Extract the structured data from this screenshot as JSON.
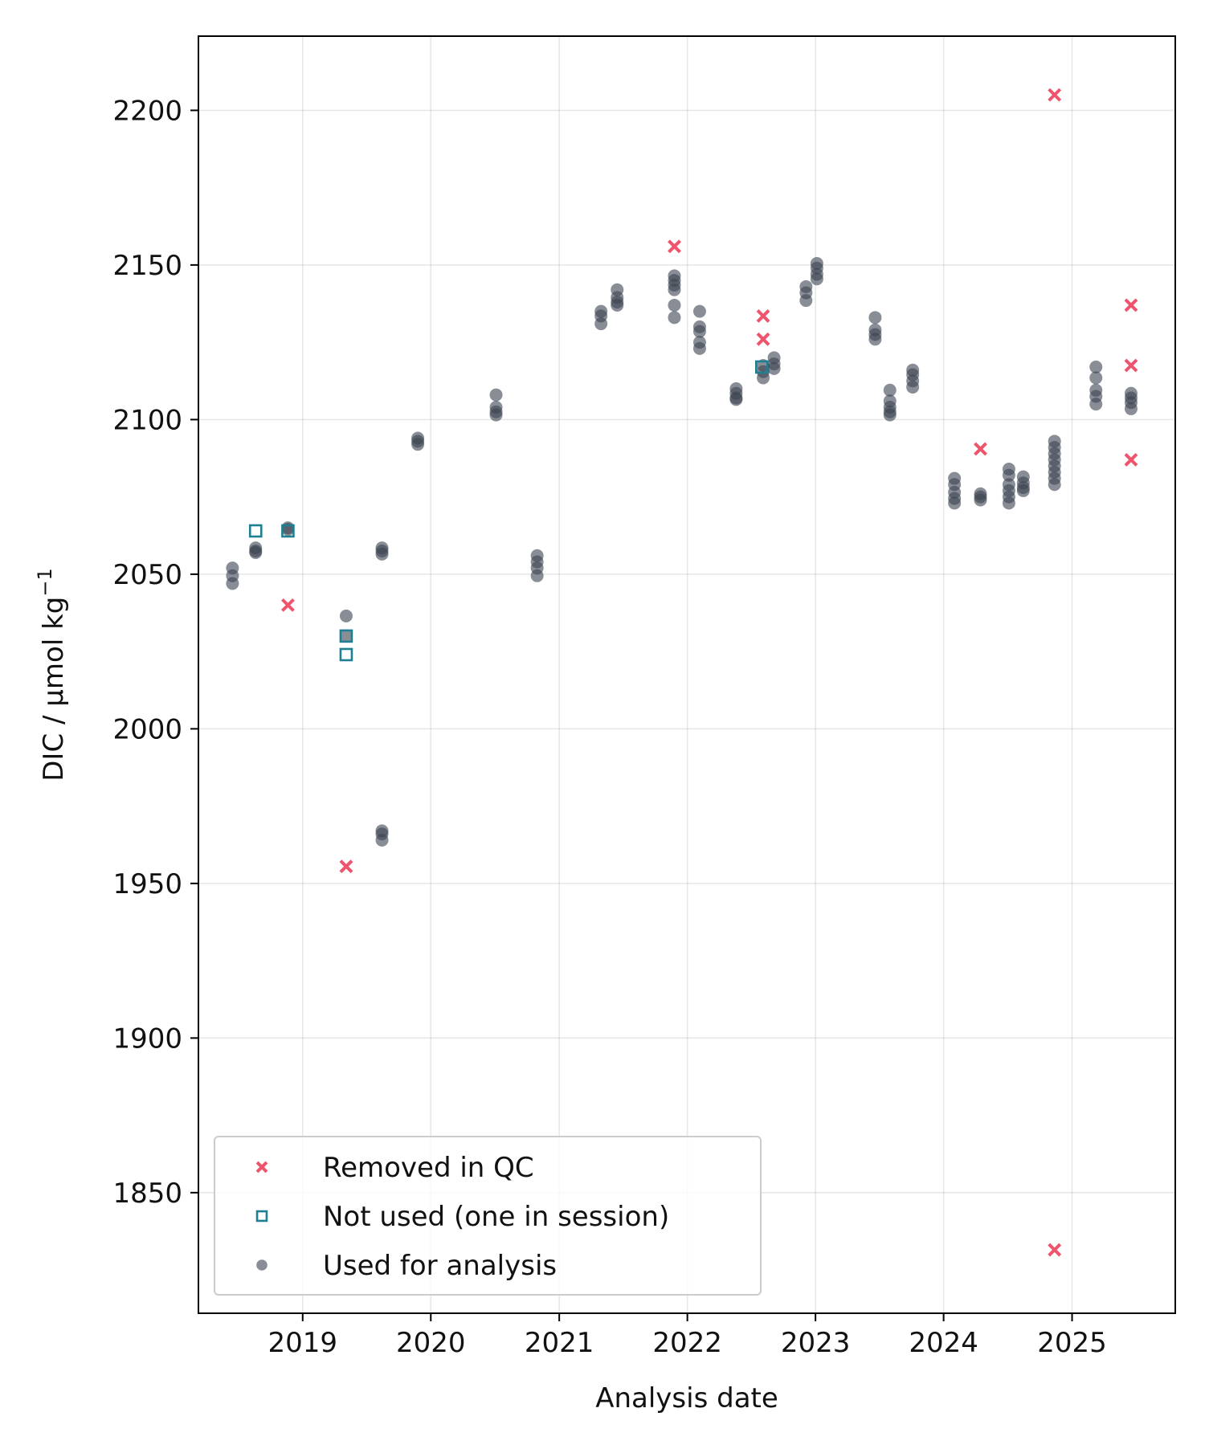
{
  "chart_data": {
    "type": "scatter",
    "title": "",
    "xlabel": "Analysis date",
    "ylabel": "DIC / μmol kg⁻¹",
    "ylabel_main": "DIC / μmol kg",
    "ylabel_exponent": "−1",
    "xlim": [
      "2018-03-10",
      "2025-10-22"
    ],
    "ylim": [
      1811,
      2224
    ],
    "xticks": [
      {
        "date": "2019-01-01",
        "label": "2019"
      },
      {
        "date": "2020-01-01",
        "label": "2020"
      },
      {
        "date": "2021-01-01",
        "label": "2021"
      },
      {
        "date": "2022-01-01",
        "label": "2022"
      },
      {
        "date": "2023-01-01",
        "label": "2023"
      },
      {
        "date": "2024-01-01",
        "label": "2024"
      },
      {
        "date": "2025-01-01",
        "label": "2025"
      }
    ],
    "yticks": [
      1850,
      1900,
      1950,
      2000,
      2050,
      2100,
      2150,
      2200
    ],
    "grid": true,
    "legend_position": "bottom-left",
    "legend": [
      {
        "key": "removed",
        "label": "Removed in QC"
      },
      {
        "key": "not_used",
        "label": "Not used (one in session)"
      },
      {
        "key": "used",
        "label": "Used for analysis"
      }
    ],
    "series": [
      {
        "key": "used",
        "name": "Used for analysis",
        "marker": "circle",
        "color": "#3a4250",
        "points": [
          {
            "x": "2018-06-15",
            "y": 2052
          },
          {
            "x": "2018-06-15",
            "y": 2049.5
          },
          {
            "x": "2018-06-15",
            "y": 2047
          },
          {
            "x": "2018-08-20",
            "y": 2058.5
          },
          {
            "x": "2018-08-20",
            "y": 2057.5
          },
          {
            "x": "2018-08-20",
            "y": 2057
          },
          {
            "x": "2018-11-20",
            "y": 2065
          },
          {
            "x": "2018-11-20",
            "y": 2064.5
          },
          {
            "x": "2019-05-05",
            "y": 2036.5
          },
          {
            "x": "2019-05-05",
            "y": 2030
          },
          {
            "x": "2019-08-15",
            "y": 2058.5
          },
          {
            "x": "2019-08-15",
            "y": 2057.5
          },
          {
            "x": "2019-08-15",
            "y": 2056.5
          },
          {
            "x": "2019-08-15",
            "y": 1967
          },
          {
            "x": "2019-08-15",
            "y": 1966
          },
          {
            "x": "2019-08-15",
            "y": 1964
          },
          {
            "x": "2019-11-25",
            "y": 2094
          },
          {
            "x": "2019-11-25",
            "y": 2093
          },
          {
            "x": "2019-11-25",
            "y": 2092
          },
          {
            "x": "2020-07-05",
            "y": 2108
          },
          {
            "x": "2020-07-05",
            "y": 2104
          },
          {
            "x": "2020-07-05",
            "y": 2102.5
          },
          {
            "x": "2020-07-05",
            "y": 2101.5
          },
          {
            "x": "2020-10-30",
            "y": 2056
          },
          {
            "x": "2020-10-30",
            "y": 2054
          },
          {
            "x": "2020-10-30",
            "y": 2052
          },
          {
            "x": "2020-10-30",
            "y": 2049.5
          },
          {
            "x": "2021-04-30",
            "y": 2135
          },
          {
            "x": "2021-04-30",
            "y": 2133.5
          },
          {
            "x": "2021-04-30",
            "y": 2131
          },
          {
            "x": "2021-06-15",
            "y": 2142
          },
          {
            "x": "2021-06-15",
            "y": 2139.5
          },
          {
            "x": "2021-06-15",
            "y": 2138
          },
          {
            "x": "2021-06-15",
            "y": 2137
          },
          {
            "x": "2021-11-25",
            "y": 2146.5
          },
          {
            "x": "2021-11-25",
            "y": 2145
          },
          {
            "x": "2021-11-25",
            "y": 2143.5
          },
          {
            "x": "2021-11-25",
            "y": 2142
          },
          {
            "x": "2021-11-25",
            "y": 2137
          },
          {
            "x": "2021-11-25",
            "y": 2133
          },
          {
            "x": "2022-02-05",
            "y": 2135
          },
          {
            "x": "2022-02-05",
            "y": 2130
          },
          {
            "x": "2022-02-05",
            "y": 2128.5
          },
          {
            "x": "2022-02-05",
            "y": 2125
          },
          {
            "x": "2022-02-05",
            "y": 2123
          },
          {
            "x": "2022-05-20",
            "y": 2110
          },
          {
            "x": "2022-05-20",
            "y": 2108.5
          },
          {
            "x": "2022-05-20",
            "y": 2107
          },
          {
            "x": "2022-05-20",
            "y": 2106.5
          },
          {
            "x": "2022-08-05",
            "y": 2117.5
          },
          {
            "x": "2022-08-05",
            "y": 2115.5
          },
          {
            "x": "2022-08-05",
            "y": 2113.5
          },
          {
            "x": "2022-09-05",
            "y": 2120
          },
          {
            "x": "2022-09-05",
            "y": 2118
          },
          {
            "x": "2022-09-05",
            "y": 2116.5
          },
          {
            "x": "2022-12-05",
            "y": 2143
          },
          {
            "x": "2022-12-05",
            "y": 2141
          },
          {
            "x": "2022-12-05",
            "y": 2138.5
          },
          {
            "x": "2023-01-05",
            "y": 2150.5
          },
          {
            "x": "2023-01-05",
            "y": 2149
          },
          {
            "x": "2023-01-05",
            "y": 2147
          },
          {
            "x": "2023-01-05",
            "y": 2145.5
          },
          {
            "x": "2023-06-20",
            "y": 2133
          },
          {
            "x": "2023-06-20",
            "y": 2129
          },
          {
            "x": "2023-06-20",
            "y": 2127.5
          },
          {
            "x": "2023-06-20",
            "y": 2126
          },
          {
            "x": "2023-08-01",
            "y": 2109.5
          },
          {
            "x": "2023-08-01",
            "y": 2106
          },
          {
            "x": "2023-08-01",
            "y": 2104
          },
          {
            "x": "2023-08-01",
            "y": 2102.5
          },
          {
            "x": "2023-08-01",
            "y": 2101.5
          },
          {
            "x": "2023-10-05",
            "y": 2116
          },
          {
            "x": "2023-10-05",
            "y": 2114.5
          },
          {
            "x": "2023-10-05",
            "y": 2112.5
          },
          {
            "x": "2023-10-05",
            "y": 2110.5
          },
          {
            "x": "2024-02-01",
            "y": 2081
          },
          {
            "x": "2024-02-01",
            "y": 2079
          },
          {
            "x": "2024-02-01",
            "y": 2076.5
          },
          {
            "x": "2024-02-01",
            "y": 2074.5
          },
          {
            "x": "2024-02-01",
            "y": 2073
          },
          {
            "x": "2024-04-15",
            "y": 2076
          },
          {
            "x": "2024-04-15",
            "y": 2075
          },
          {
            "x": "2024-04-15",
            "y": 2074
          },
          {
            "x": "2024-07-05",
            "y": 2084
          },
          {
            "x": "2024-07-05",
            "y": 2082
          },
          {
            "x": "2024-07-05",
            "y": 2079
          },
          {
            "x": "2024-07-05",
            "y": 2077
          },
          {
            "x": "2024-07-05",
            "y": 2075
          },
          {
            "x": "2024-07-05",
            "y": 2073
          },
          {
            "x": "2024-08-15",
            "y": 2081.5
          },
          {
            "x": "2024-08-15",
            "y": 2079.5
          },
          {
            "x": "2024-08-15",
            "y": 2078
          },
          {
            "x": "2024-08-15",
            "y": 2077
          },
          {
            "x": "2024-11-12",
            "y": 2093
          },
          {
            "x": "2024-11-12",
            "y": 2091
          },
          {
            "x": "2024-11-12",
            "y": 2089
          },
          {
            "x": "2024-11-12",
            "y": 2087
          },
          {
            "x": "2024-11-12",
            "y": 2085
          },
          {
            "x": "2024-11-12",
            "y": 2083
          },
          {
            "x": "2024-11-12",
            "y": 2081
          },
          {
            "x": "2024-11-12",
            "y": 2079
          },
          {
            "x": "2025-03-10",
            "y": 2117
          },
          {
            "x": "2025-03-10",
            "y": 2113.5
          },
          {
            "x": "2025-03-10",
            "y": 2109.5
          },
          {
            "x": "2025-03-10",
            "y": 2107.5
          },
          {
            "x": "2025-03-10",
            "y": 2105
          },
          {
            "x": "2025-06-18",
            "y": 2108.5
          },
          {
            "x": "2025-06-18",
            "y": 2107
          },
          {
            "x": "2025-06-18",
            "y": 2105.5
          },
          {
            "x": "2025-06-18",
            "y": 2103.5
          }
        ]
      },
      {
        "key": "not_used",
        "name": "Not used (one in session)",
        "marker": "square",
        "color": "#1e7f93",
        "points": [
          {
            "x": "2018-08-20",
            "y": 2064
          },
          {
            "x": "2018-11-20",
            "y": 2064
          },
          {
            "x": "2019-05-05",
            "y": 2030
          },
          {
            "x": "2019-05-05",
            "y": 2024
          },
          {
            "x": "2022-08-01",
            "y": 2117
          }
        ]
      },
      {
        "key": "removed",
        "name": "Removed in QC",
        "marker": "x",
        "color": "#f0546c",
        "points": [
          {
            "x": "2018-11-20",
            "y": 2040
          },
          {
            "x": "2019-05-05",
            "y": 1955.5
          },
          {
            "x": "2021-11-25",
            "y": 2156
          },
          {
            "x": "2022-08-05",
            "y": 2133.5
          },
          {
            "x": "2022-08-05",
            "y": 2126
          },
          {
            "x": "2024-04-15",
            "y": 2090.5
          },
          {
            "x": "2024-11-12",
            "y": 2205
          },
          {
            "x": "2024-11-12",
            "y": 1831.5
          },
          {
            "x": "2025-06-18",
            "y": 2137
          },
          {
            "x": "2025-06-18",
            "y": 2117.5
          },
          {
            "x": "2025-06-18",
            "y": 2087
          }
        ]
      }
    ]
  }
}
